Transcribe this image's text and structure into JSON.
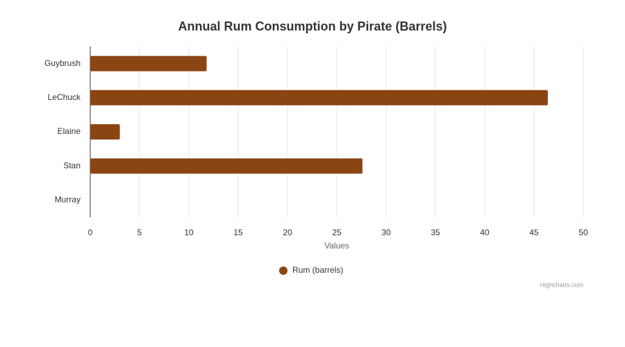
{
  "chart_data": {
    "type": "bar",
    "orientation": "horizontal",
    "title": "Annual Rum Consumption by Pirate (Barrels)",
    "categories": [
      "Guybrush",
      "LeChuck",
      "Elaine",
      "Stan",
      "Murray"
    ],
    "series": [
      {
        "name": "Rum (barrels)",
        "color": "#8b4513",
        "values": [
          11.8,
          46.4,
          3,
          27.6,
          0
        ]
      }
    ],
    "x_label": "Values",
    "xlim": [
      0,
      50
    ],
    "xticks": [
      0,
      5,
      10,
      15,
      20,
      25,
      30,
      35,
      40,
      45,
      50
    ],
    "grid": true,
    "legend": "bottom",
    "credits": "Highcharts.com"
  }
}
